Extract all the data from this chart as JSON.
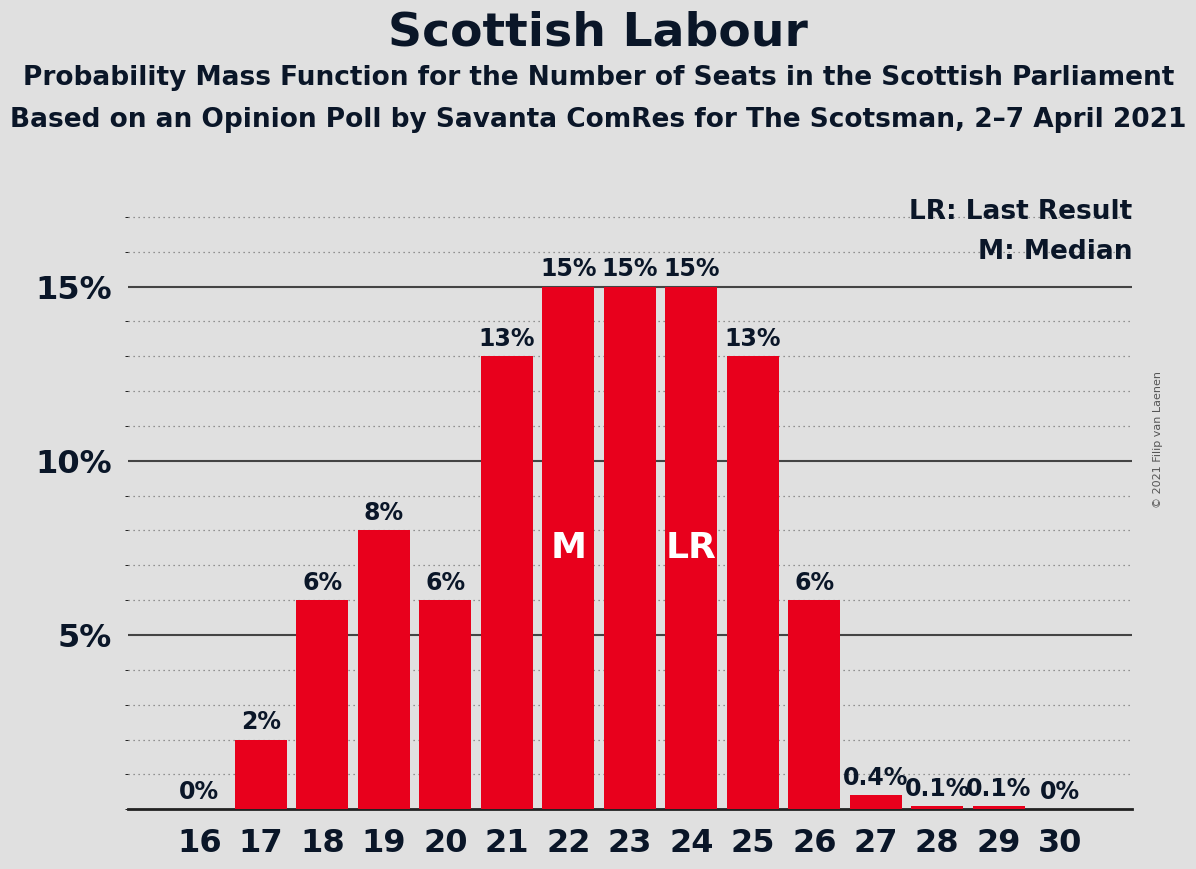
{
  "title": "Scottish Labour",
  "subtitle1": "Probability Mass Function for the Number of Seats in the Scottish Parliament",
  "subtitle2": "Based on an Opinion Poll by Savanta ComRes for The Scotsman, 2–7 April 2021",
  "copyright": "© 2021 Filip van Laenen",
  "legend_lr": "LR: Last Result",
  "legend_m": "M: Median",
  "categories": [
    16,
    17,
    18,
    19,
    20,
    21,
    22,
    23,
    24,
    25,
    26,
    27,
    28,
    29,
    30
  ],
  "values": [
    0.0,
    2.0,
    6.0,
    8.0,
    6.0,
    13.0,
    15.0,
    15.0,
    15.0,
    13.0,
    6.0,
    0.4,
    0.1,
    0.1,
    0.0
  ],
  "bar_color": "#E8001C",
  "median_seat": 22,
  "lr_seat": 24,
  "background_color": "#e0e0e0",
  "plot_background_color": "#e0e0e0",
  "text_color": "#0a1628",
  "yticks": [
    5,
    10,
    15
  ],
  "ylim": [
    0,
    17.5
  ],
  "title_fontsize": 34,
  "subtitle_fontsize": 19,
  "axis_label_fontsize": 23,
  "bar_label_fontsize": 17,
  "inside_label_fontsize": 26,
  "legend_fontsize": 19
}
